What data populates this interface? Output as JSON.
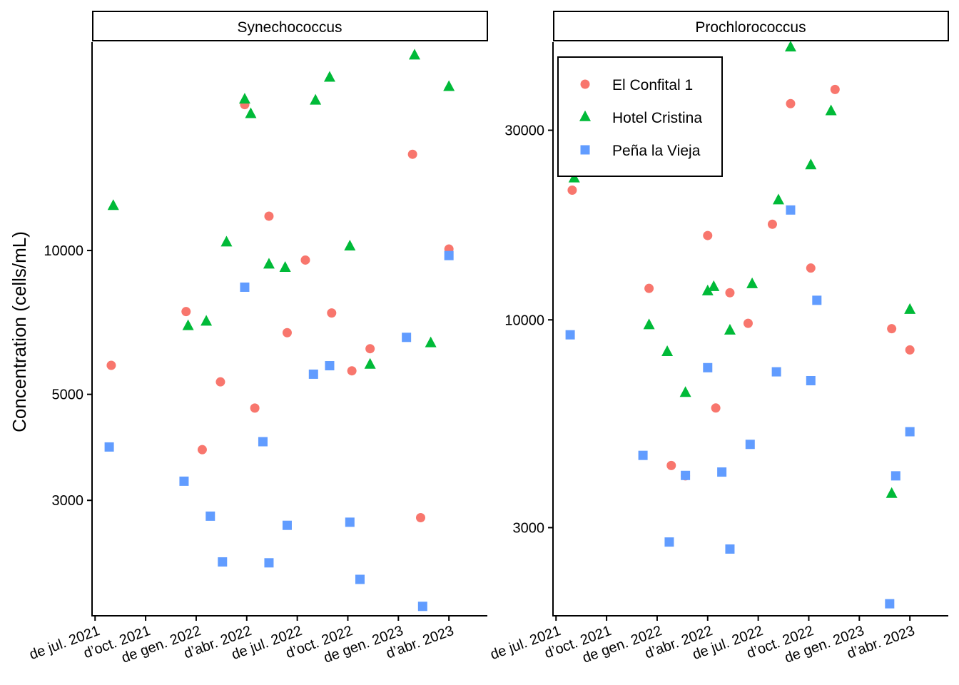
{
  "chart_data": {
    "type": "scatter",
    "ylabel": "Concentration (cells/mL)",
    "y_scale": "log",
    "x_ticks": [
      "de jul. 2021",
      "d’oct. 2021",
      "de gen. 2022",
      "d’abr. 2022",
      "de jul. 2022",
      "d’oct. 2022",
      "de gen. 2023",
      "d’abr. 2023"
    ],
    "x_tick_dates": [
      2021.5,
      2021.75,
      2022.0,
      2022.25,
      2022.5,
      2022.75,
      2023.0,
      2023.25
    ],
    "legend": {
      "placement": "top-left of second panel",
      "entries": [
        {
          "name": "El Confital 1",
          "shape": "circle",
          "color": "#F8766D"
        },
        {
          "name": "Hotel Cristina",
          "shape": "triangle",
          "color": "#00BA38"
        },
        {
          "name": "Peña la Vieja",
          "shape": "square",
          "color": "#619CFF"
        }
      ]
    },
    "panels": [
      {
        "title": "Synechococcus",
        "xlim": [
          2021.485,
          2023.44
        ],
        "ylim": [
          1720,
          27300
        ],
        "y_ticks": [
          3000,
          5000,
          10000
        ],
        "y_tick_labels": [
          "3000",
          "5000",
          "10000"
        ],
        "series": [
          {
            "name": "El Confital 1",
            "x": [
              2021.58,
              2021.95,
              2022.03,
              2022.12,
              2022.24,
              2022.29,
              2022.36,
              2022.45,
              2022.54,
              2022.67,
              2022.77,
              2022.86,
              2023.07,
              2023.11,
              2023.25
            ],
            "y": [
              5750,
              7450,
              3830,
              5310,
              20200,
              4680,
              11800,
              6730,
              9550,
              7400,
              5600,
              6230,
              15900,
              2760,
              10070
            ]
          },
          {
            "name": "Hotel Cristina",
            "x": [
              2021.59,
              2021.96,
              2022.05,
              2022.15,
              2022.24,
              2022.27,
              2022.36,
              2022.44,
              2022.59,
              2022.66,
              2022.76,
              2022.86,
              2023.08,
              2023.16,
              2023.25
            ],
            "y": [
              12400,
              6950,
              7100,
              10400,
              20700,
              19300,
              9350,
              9200,
              20600,
              23000,
              10200,
              5770,
              25600,
              6400,
              22000
            ]
          },
          {
            "name": "Peña la Vieja",
            "x": [
              2021.57,
              2021.94,
              2022.07,
              2022.13,
              2022.24,
              2022.33,
              2022.36,
              2022.45,
              2022.58,
              2022.66,
              2022.76,
              2022.81,
              2023.04,
              2023.12,
              2023.25
            ],
            "y": [
              3880,
              3290,
              2780,
              2230,
              8380,
              3980,
              2220,
              2660,
              5510,
              5740,
              2700,
              2050,
              6580,
              1800,
              9760
            ]
          }
        ]
      },
      {
        "title": "Prochlorococcus",
        "xlim": [
          2021.485,
          2023.44
        ],
        "ylim": [
          1800,
          50000
        ],
        "y_ticks": [
          3000,
          10000,
          30000
        ],
        "y_tick_labels": [
          "3000",
          "10000",
          "30000"
        ],
        "series": [
          {
            "name": "El Confital 1",
            "x": [
              2021.58,
              2021.96,
              2022.07,
              2022.14,
              2022.25,
              2022.29,
              2022.36,
              2022.45,
              2022.57,
              2022.66,
              2022.76,
              2022.88,
              2023.16,
              2023.25
            ],
            "y": [
              21200,
              12000,
              4300,
              4050,
              16300,
              6000,
              11700,
              9800,
              17400,
              35000,
              13500,
              38000,
              9500,
              8400
            ]
          },
          {
            "name": "Hotel Cristina",
            "x": [
              2021.59,
              2021.96,
              2022.05,
              2022.14,
              2022.25,
              2022.28,
              2022.36,
              2022.47,
              2022.6,
              2022.66,
              2022.76,
              2022.86,
              2023.16,
              2023.25
            ],
            "y": [
              22700,
              9700,
              8300,
              6550,
              11800,
              12100,
              9400,
              12300,
              20000,
              48500,
              24500,
              33500,
              3650,
              10600
            ]
          },
          {
            "name": "Peña la Vieja",
            "x": [
              2021.57,
              2021.93,
              2022.06,
              2022.14,
              2022.25,
              2022.32,
              2022.36,
              2022.46,
              2022.59,
              2022.66,
              2022.76,
              2022.79,
              2023.15,
              2023.18,
              2023.25
            ],
            "y": [
              9170,
              4560,
              2760,
              4060,
              7580,
              4140,
              2650,
              4860,
              7400,
              18900,
              7030,
              11200,
              1930,
              4050,
              5230
            ]
          }
        ]
      }
    ]
  }
}
